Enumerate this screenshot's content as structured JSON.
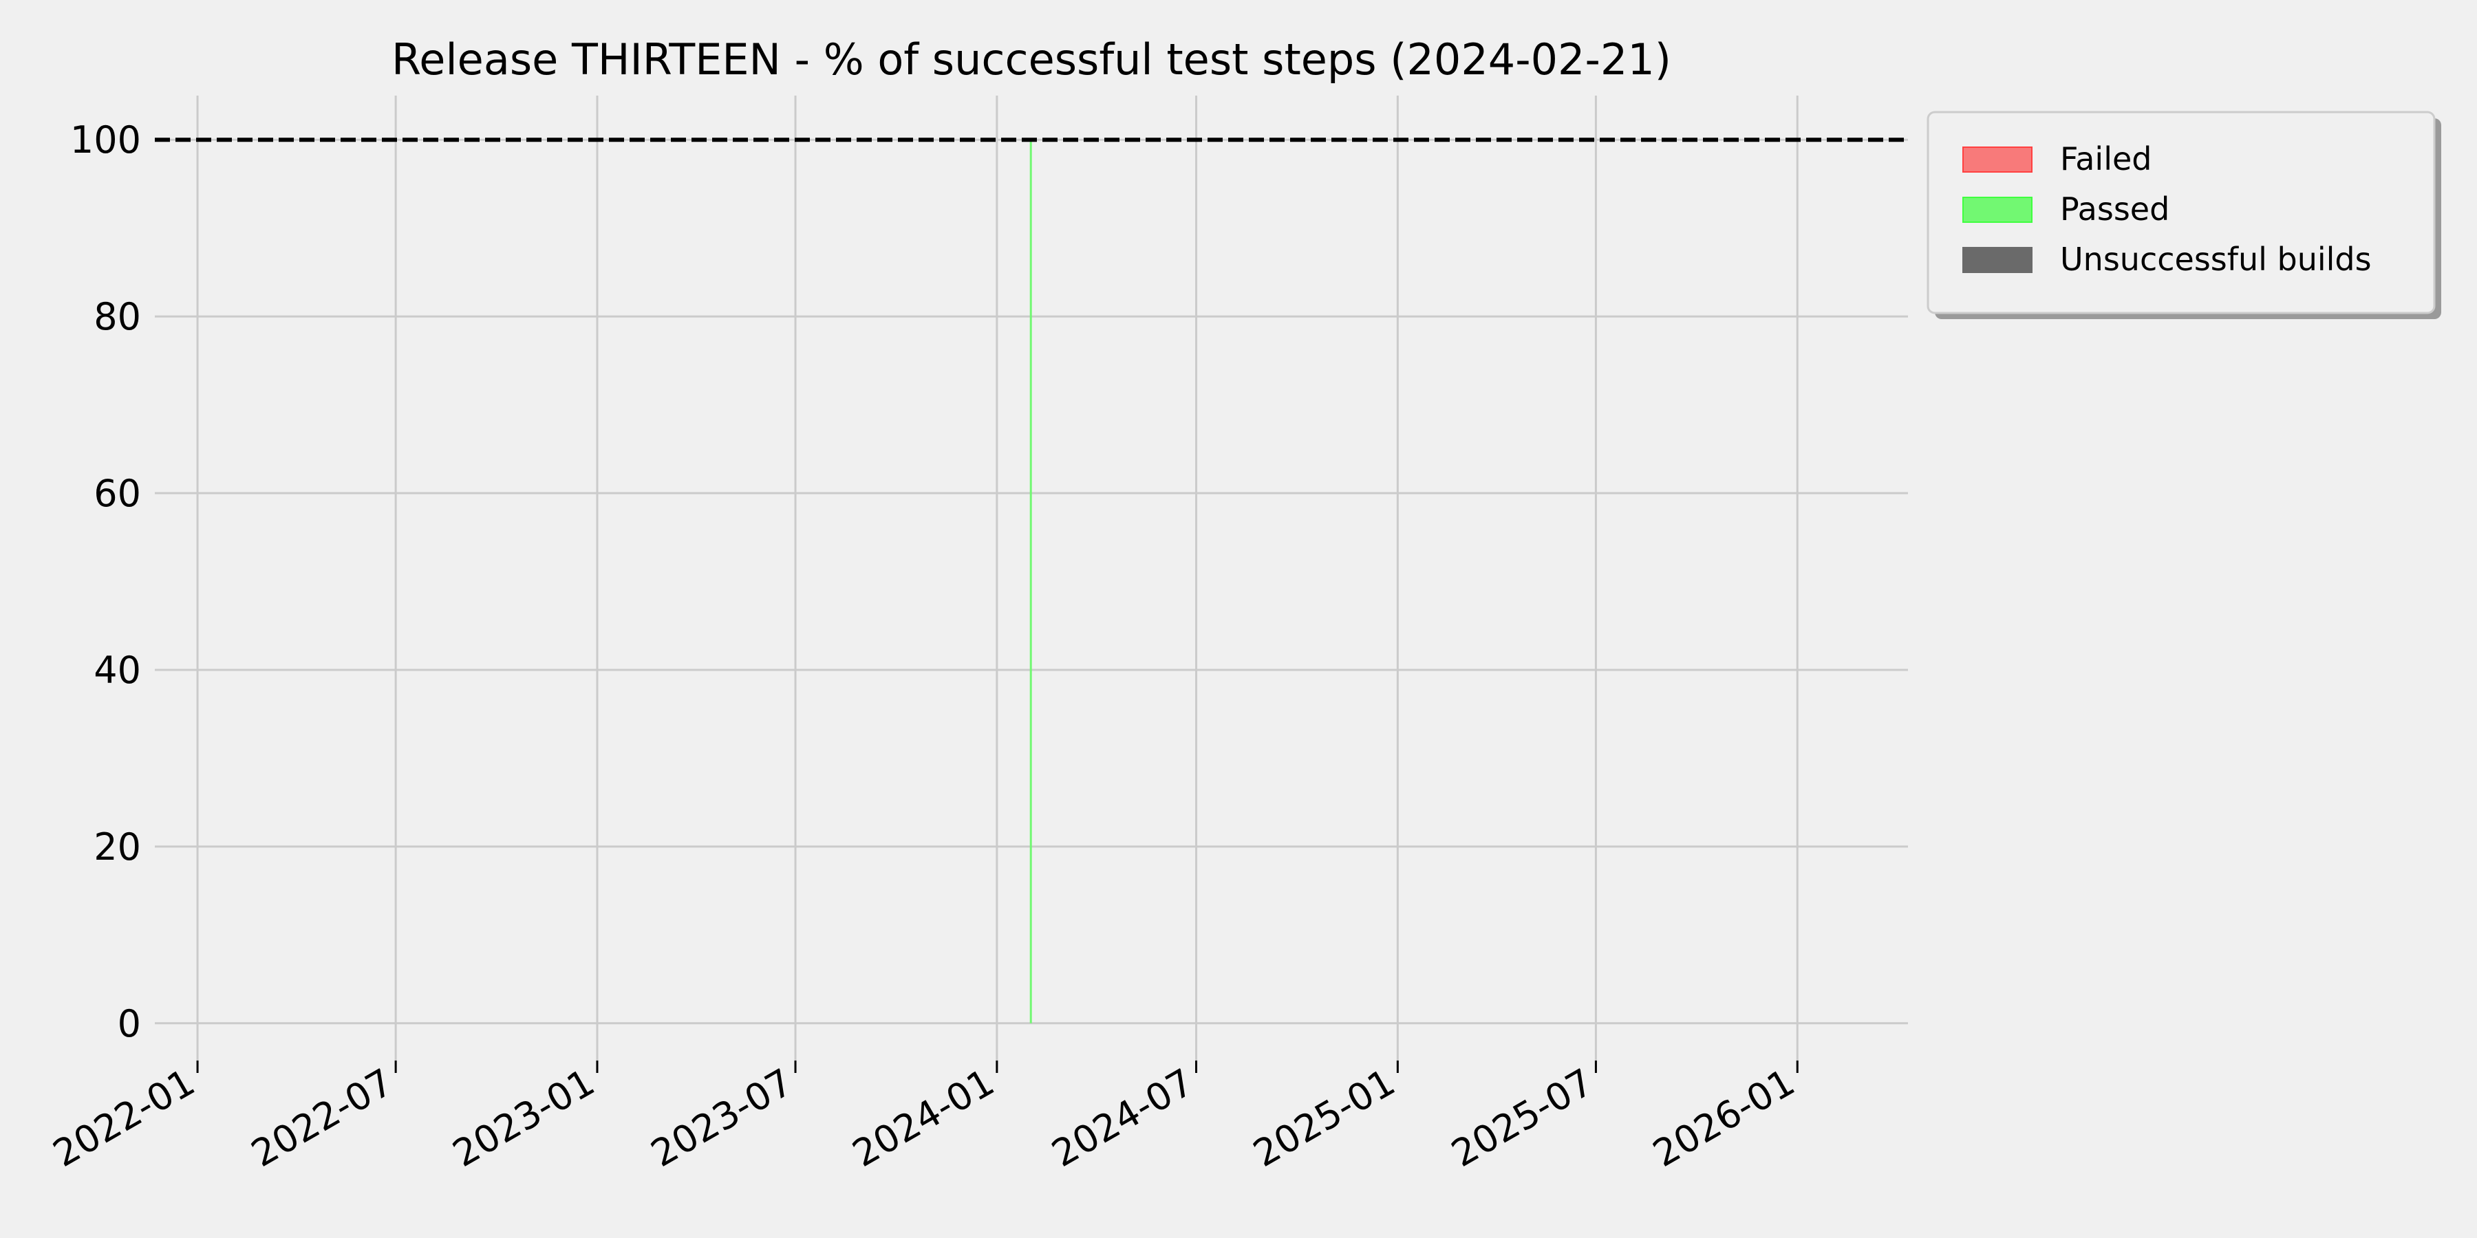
{
  "chart_data": {
    "type": "bar",
    "title": "Release THIRTEEN - % of successful test steps (2024-02-21)",
    "xlabel": "",
    "ylabel": "",
    "x_axis_type": "date",
    "xlim": [
      "2021-11-23",
      "2026-04-12"
    ],
    "ylim": [
      -5,
      105
    ],
    "grid": true,
    "x_ticks": [
      "2022-01",
      "2022-07",
      "2023-01",
      "2023-07",
      "2024-01",
      "2024-07",
      "2025-01",
      "2025-07",
      "2026-01"
    ],
    "y_ticks": [
      0,
      20,
      40,
      60,
      80,
      100
    ],
    "reference_line": {
      "y": 100,
      "style": "dashed",
      "color": "#000000"
    },
    "legend_position": "outside-top-right",
    "series": [
      {
        "name": "Failed",
        "color": "#f87a7a",
        "edge": "#ff4040",
        "points": []
      },
      {
        "name": "Passed",
        "color": "#72f872",
        "edge": "#40ff40",
        "points": [
          {
            "x": "2024-02-01",
            "y": 100
          }
        ]
      },
      {
        "name": "Unsuccessful builds",
        "color": "#6a6a6a",
        "edge": "#6a6a6a",
        "points": []
      }
    ]
  }
}
